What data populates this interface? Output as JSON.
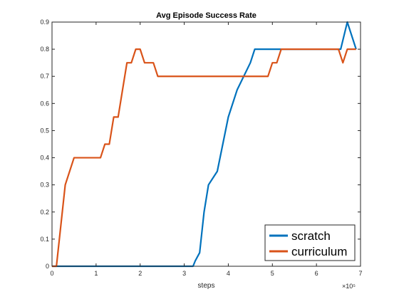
{
  "chart_data": {
    "type": "line",
    "title": "Avg Episode Success Rate",
    "xlabel": "steps",
    "ylabel": "",
    "x_exponent_label": "×10⁵",
    "xlim": [
      0,
      7
    ],
    "ylim": [
      0,
      0.9
    ],
    "x_ticks": [
      "0",
      "1",
      "2",
      "3",
      "4",
      "5",
      "6",
      "7"
    ],
    "y_ticks": [
      "0",
      "0.1",
      "0.2",
      "0.3",
      "0.4",
      "0.5",
      "0.6",
      "0.7",
      "0.8",
      "0.9"
    ],
    "grid": false,
    "legend_position": "bottom-right",
    "series": [
      {
        "name": "scratch",
        "color": "#0072BD",
        "x": [
          0.0,
          3.2,
          3.25,
          3.35,
          3.45,
          3.55,
          3.75,
          4.0,
          4.2,
          4.5,
          4.6,
          5.2,
          6.55,
          6.7,
          6.9
        ],
        "y": [
          0.0,
          0.0,
          0.02,
          0.05,
          0.2,
          0.3,
          0.35,
          0.55,
          0.65,
          0.75,
          0.8,
          0.8,
          0.8,
          0.9,
          0.8
        ]
      },
      {
        "name": "curriculum",
        "color": "#D95319",
        "x": [
          0.0,
          0.1,
          0.3,
          0.5,
          1.1,
          1.2,
          1.3,
          1.4,
          1.5,
          1.7,
          1.8,
          1.9,
          2.0,
          2.1,
          2.3,
          2.4,
          4.9,
          5.0,
          5.1,
          5.2,
          6.5,
          6.6,
          6.7,
          6.9
        ],
        "y": [
          0.0,
          0.0,
          0.3,
          0.4,
          0.4,
          0.45,
          0.45,
          0.55,
          0.55,
          0.75,
          0.75,
          0.8,
          0.8,
          0.75,
          0.75,
          0.7,
          0.7,
          0.75,
          0.75,
          0.8,
          0.8,
          0.75,
          0.8,
          0.8
        ]
      }
    ]
  }
}
